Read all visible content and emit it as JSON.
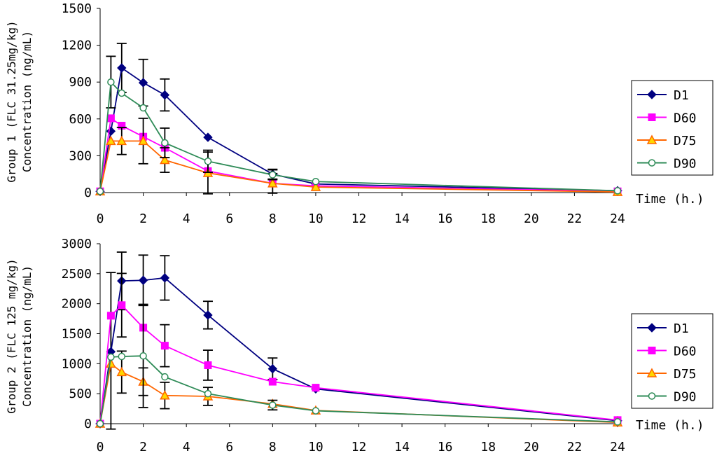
{
  "chart_data": [
    {
      "type": "line",
      "title": "",
      "ylabel_line1": "Group 1 (FLC 31.25mg/kg)",
      "ylabel_line2": "Concentration (ng/mL)",
      "xlabel": "Time (h.)",
      "x_ticks": [
        0,
        2,
        4,
        6,
        8,
        10,
        12,
        14,
        16,
        18,
        20,
        22,
        24
      ],
      "y_ticks": [
        0,
        300,
        600,
        900,
        1200,
        1500
      ],
      "xlim": [
        0,
        24
      ],
      "ylim": [
        0,
        1500
      ],
      "x": [
        0,
        0.5,
        1,
        2,
        3,
        5,
        8,
        10,
        24
      ],
      "series": [
        {
          "name": "D1",
          "color": "#000080",
          "marker": "diamond",
          "values": [
            10,
            500,
            1015,
            895,
            795,
            450,
            150,
            70,
            15
          ],
          "errors": [
            0,
            0,
            200,
            190,
            130,
            0,
            40,
            0,
            0
          ]
        },
        {
          "name": "D60",
          "color": "#ff00ff",
          "marker": "square",
          "values": [
            10,
            605,
            545,
            455,
            365,
            175,
            75,
            55,
            10
          ],
          "errors": [
            0,
            0,
            0,
            0,
            0,
            0,
            0,
            0,
            0
          ]
        },
        {
          "name": "D75",
          "color": "#ff6600",
          "marker": "triangle",
          "values": [
            10,
            420,
            420,
            420,
            265,
            160,
            75,
            45,
            5
          ],
          "errors": [
            0,
            0,
            110,
            185,
            100,
            170,
            80,
            0,
            0
          ]
        },
        {
          "name": "D90",
          "color": "#2e8b57",
          "marker": "circle",
          "values": [
            10,
            900,
            810,
            690,
            405,
            255,
            145,
            90,
            15
          ],
          "errors": [
            0,
            210,
            0,
            0,
            120,
            90,
            40,
            0,
            0
          ]
        }
      ]
    },
    {
      "type": "line",
      "title": "",
      "ylabel_line1": "Group 2 (FLC 125 mg/kg)",
      "ylabel_line2": "Concentration (ng/mL)",
      "xlabel": "Time (h.)",
      "x_ticks": [
        0,
        2,
        4,
        6,
        8,
        10,
        12,
        14,
        16,
        18,
        20,
        22,
        24
      ],
      "y_ticks": [
        0,
        500,
        1000,
        1500,
        2000,
        2500,
        3000
      ],
      "xlim": [
        0,
        24
      ],
      "ylim": [
        0,
        3000
      ],
      "x": [
        0,
        0.5,
        1,
        2,
        3,
        5,
        8,
        10,
        24
      ],
      "series": [
        {
          "name": "D1",
          "color": "#000080",
          "marker": "diamond",
          "values": [
            0,
            1200,
            2380,
            2390,
            2430,
            1810,
            915,
            580,
            50
          ],
          "errors": [
            0,
            1320,
            480,
            420,
            370,
            230,
            180,
            0,
            0
          ]
        },
        {
          "name": "D60",
          "color": "#ff00ff",
          "marker": "square",
          "values": [
            0,
            1800,
            1975,
            1600,
            1300,
            975,
            700,
            600,
            60
          ],
          "errors": [
            0,
            0,
            530,
            0,
            350,
            250,
            0,
            0,
            0
          ]
        },
        {
          "name": "D75",
          "color": "#ff6600",
          "marker": "triangle",
          "values": [
            0,
            1000,
            860,
            700,
            470,
            455,
            330,
            220,
            20
          ],
          "errors": [
            0,
            0,
            350,
            230,
            220,
            150,
            0,
            0,
            0
          ]
        },
        {
          "name": "D90",
          "color": "#2e8b57",
          "marker": "circle",
          "values": [
            0,
            1110,
            1120,
            1130,
            780,
            500,
            310,
            215,
            30
          ],
          "errors": [
            0,
            0,
            0,
            860,
            0,
            0,
            80,
            0,
            0
          ]
        }
      ]
    }
  ]
}
